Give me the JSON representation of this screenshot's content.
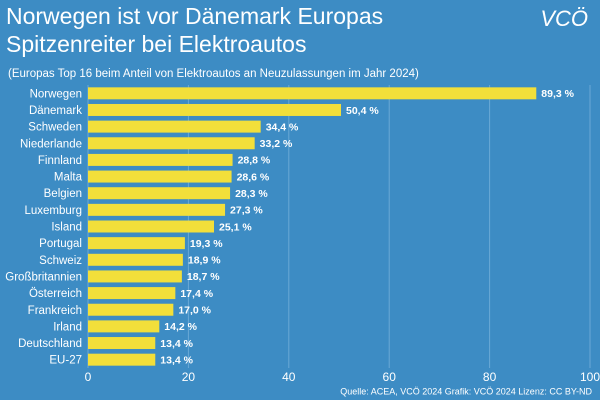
{
  "chart_data": {
    "type": "bar",
    "orientation": "horizontal",
    "title": [
      "Norwegen ist vor Dänemark Europas",
      "Spitzenreiter bei Elektroautos"
    ],
    "subtitle": "(Europas Top 16 beim Anteil von Elektroautos an Neuzulassungen im Jahr 2024)",
    "logo": "VCÖ",
    "source": "Quelle: ACEA, VCÖ 2024 Grafik: VCÖ 2024 Lizenz: CC BY-ND",
    "categories": [
      "Norwegen",
      "Dänemark",
      "Schweden",
      "Niederlande",
      "Finnland",
      "Malta",
      "Belgien",
      "Luxemburg",
      "Island",
      "Portugal",
      "Schweiz",
      "Großbritannien",
      "Österreich",
      "Frankreich",
      "Irland",
      "Deutschland",
      "EU-27"
    ],
    "values": [
      89.3,
      50.4,
      34.4,
      33.2,
      28.8,
      28.6,
      28.3,
      27.3,
      25.1,
      19.3,
      18.9,
      18.7,
      17.4,
      17.0,
      14.2,
      13.4,
      13.4
    ],
    "value_labels": [
      "89,3 %",
      "50,4 %",
      "34,4 %",
      "33,2 %",
      "28,8 %",
      "28,6 %",
      "28,3 %",
      "27,3 %",
      "25,1 %",
      "19,3 %",
      "18,9 %",
      "18,7 %",
      "17,4 %",
      "17,0 %",
      "14,2 %",
      "13,4 %",
      "13,4 %"
    ],
    "color": "#f2df3a",
    "xlim": [
      0,
      100
    ],
    "xticks": [
      0,
      20,
      40,
      60,
      80,
      100
    ],
    "grid": true
  }
}
